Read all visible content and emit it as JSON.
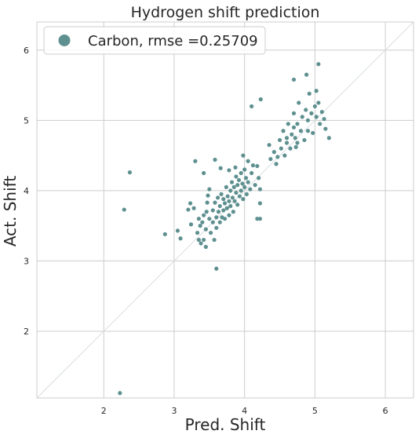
{
  "chart_data": {
    "type": "scatter",
    "title": "Hydrogen shift prediction",
    "xlabel": "Pred. Shift",
    "ylabel": "Act. Shift",
    "xlim": [
      1.05,
      6.4
    ],
    "ylim": [
      1.05,
      6.4
    ],
    "xticks": [
      2,
      3,
      4,
      5,
      6
    ],
    "yticks": [
      2,
      3,
      4,
      5,
      6
    ],
    "grid": true,
    "legend_position": "top-left",
    "identity_line": true,
    "series": [
      {
        "name": "Carbon, rmse =0.25709",
        "color": "#5f9090",
        "points": [
          [
            2.23,
            1.12
          ],
          [
            2.29,
            3.73
          ],
          [
            2.37,
            4.26
          ],
          [
            2.87,
            3.38
          ],
          [
            3.05,
            3.43
          ],
          [
            3.09,
            3.32
          ],
          [
            3.6,
            2.89
          ],
          [
            3.2,
            3.73
          ],
          [
            3.23,
            3.82
          ],
          [
            3.28,
            3.75
          ],
          [
            3.24,
            3.52
          ],
          [
            3.3,
            4.42
          ],
          [
            3.33,
            3.4
          ],
          [
            3.35,
            3.6
          ],
          [
            3.35,
            3.3
          ],
          [
            3.37,
            3.5
          ],
          [
            3.38,
            3.25
          ],
          [
            3.4,
            3.55
          ],
          [
            3.42,
            3.65
          ],
          [
            3.42,
            3.3
          ],
          [
            3.45,
            3.2
          ],
          [
            3.45,
            3.45
          ],
          [
            3.46,
            3.7
          ],
          [
            3.47,
            3.83
          ],
          [
            3.48,
            3.93
          ],
          [
            3.5,
            3.6
          ],
          [
            3.5,
            4.02
          ],
          [
            3.52,
            3.4
          ],
          [
            3.55,
            3.72
          ],
          [
            3.55,
            3.55
          ],
          [
            3.57,
            3.3
          ],
          [
            3.58,
            3.83
          ],
          [
            3.6,
            3.62
          ],
          [
            3.6,
            3.47
          ],
          [
            3.62,
            3.9
          ],
          [
            3.63,
            3.7
          ],
          [
            3.65,
            3.55
          ],
          [
            3.65,
            3.78
          ],
          [
            3.67,
            3.95
          ],
          [
            3.68,
            3.62
          ],
          [
            3.7,
            3.88
          ],
          [
            3.7,
            3.72
          ],
          [
            3.72,
            3.82
          ],
          [
            3.72,
            3.6
          ],
          [
            3.74,
            4.05
          ],
          [
            3.75,
            3.75
          ],
          [
            3.76,
            3.92
          ],
          [
            3.78,
            3.65
          ],
          [
            3.78,
            3.85
          ],
          [
            3.8,
            4.0
          ],
          [
            3.8,
            3.78
          ],
          [
            3.82,
            4.12
          ],
          [
            3.83,
            3.9
          ],
          [
            3.84,
            3.7
          ],
          [
            3.85,
            4.05
          ],
          [
            3.86,
            3.85
          ],
          [
            3.88,
            4.2
          ],
          [
            3.88,
            3.97
          ],
          [
            3.9,
            4.08
          ],
          [
            3.9,
            3.8
          ],
          [
            3.92,
            4.15
          ],
          [
            3.93,
            3.92
          ],
          [
            3.95,
            4.25
          ],
          [
            3.95,
            4.0
          ],
          [
            3.97,
            4.1
          ],
          [
            3.98,
            3.88
          ],
          [
            4.0,
            4.3
          ],
          [
            4.0,
            4.05
          ],
          [
            4.02,
            4.18
          ],
          [
            4.03,
            3.95
          ],
          [
            4.05,
            4.42
          ],
          [
            4.05,
            4.12
          ],
          [
            3.98,
            4.5
          ],
          [
            3.42,
            4.25
          ],
          [
            3.58,
            4.44
          ],
          [
            3.66,
            4.32
          ],
          [
            3.78,
            4.29
          ],
          [
            3.87,
            4.33
          ],
          [
            4.08,
            4.02
          ],
          [
            4.1,
            4.25
          ],
          [
            4.12,
            4.36
          ],
          [
            4.15,
            4.08
          ],
          [
            4.18,
            3.6
          ],
          [
            4.22,
            3.6
          ],
          [
            4.1,
            5.2
          ],
          [
            4.2,
            4.18
          ],
          [
            4.22,
            4.02
          ],
          [
            4.18,
            4.35
          ],
          [
            4.22,
            3.82
          ],
          [
            4.23,
            5.3
          ],
          [
            4.35,
            4.65
          ],
          [
            4.37,
            4.45
          ],
          [
            4.42,
            4.55
          ],
          [
            4.45,
            4.38
          ],
          [
            4.47,
            4.48
          ],
          [
            4.5,
            4.72
          ],
          [
            4.52,
            4.6
          ],
          [
            4.55,
            4.85
          ],
          [
            4.57,
            4.5
          ],
          [
            4.6,
            4.68
          ],
          [
            4.62,
            4.95
          ],
          [
            4.65,
            4.6
          ],
          [
            4.67,
            4.8
          ],
          [
            4.7,
            5.1
          ],
          [
            4.72,
            4.75
          ],
          [
            4.73,
            4.62
          ],
          [
            4.75,
            4.95
          ],
          [
            4.77,
            5.25
          ],
          [
            4.8,
            4.85
          ],
          [
            4.82,
            5.05
          ],
          [
            4.85,
            4.72
          ],
          [
            4.87,
            5.15
          ],
          [
            4.9,
            5.0
          ],
          [
            4.92,
            5.38
          ],
          [
            4.95,
            5.1
          ],
          [
            4.97,
            4.82
          ],
          [
            5.0,
            5.2
          ],
          [
            5.02,
            5.05
          ],
          [
            5.05,
            5.25
          ],
          [
            5.07,
            4.95
          ],
          [
            5.1,
            5.12
          ],
          [
            5.13,
            5.02
          ],
          [
            5.15,
            4.88
          ],
          [
            5.2,
            4.75
          ],
          [
            4.7,
            5.58
          ],
          [
            4.88,
            5.65
          ],
          [
            5.05,
            5.8
          ],
          [
            5.02,
            5.42
          ],
          [
            4.6,
            4.75
          ],
          [
            4.75,
            4.68
          ],
          [
            4.7,
            4.9
          ],
          [
            4.9,
            4.85
          ]
        ]
      }
    ]
  }
}
